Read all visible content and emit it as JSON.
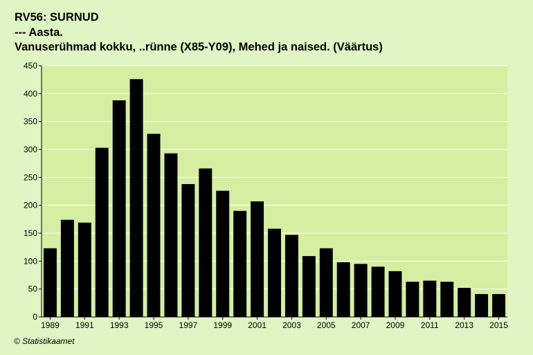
{
  "header": {
    "line1": "RV56: SURNUD",
    "line2": "--- Aasta.",
    "line3": "Vanuserühmad kokku, ..rünne (X85-Y09), Mehed ja naised. (Väärtus)"
  },
  "footer": {
    "copyright": "© Statistikaamet"
  },
  "colors": {
    "background": "#dff5c4",
    "plot": "#d5eea2",
    "bar": "#000000",
    "grid": "#ffffff"
  },
  "chart_data": {
    "type": "bar",
    "title": "RV56: SURNUD",
    "categories": [
      "1989",
      "1990",
      "1991",
      "1992",
      "1993",
      "1994",
      "1995",
      "1996",
      "1997",
      "1998",
      "1999",
      "2000",
      "2001",
      "2002",
      "2003",
      "2004",
      "2005",
      "2006",
      "2007",
      "2008",
      "2009",
      "2010",
      "2011",
      "2012",
      "2013",
      "2014",
      "2015"
    ],
    "values": [
      123,
      174,
      169,
      303,
      388,
      426,
      328,
      293,
      238,
      266,
      226,
      190,
      207,
      158,
      147,
      109,
      123,
      98,
      95,
      90,
      82,
      63,
      65,
      63,
      52,
      41,
      41
    ],
    "tick_labels_x": [
      "1989",
      "1991",
      "1993",
      "1995",
      "1997",
      "1999",
      "2001",
      "2003",
      "2005",
      "2007",
      "2009",
      "2011",
      "2013",
      "2015"
    ],
    "yticks": [
      0,
      50,
      100,
      150,
      200,
      250,
      300,
      350,
      400,
      450
    ],
    "ylim": [
      0,
      450
    ],
    "grid": true,
    "legend": "none"
  }
}
